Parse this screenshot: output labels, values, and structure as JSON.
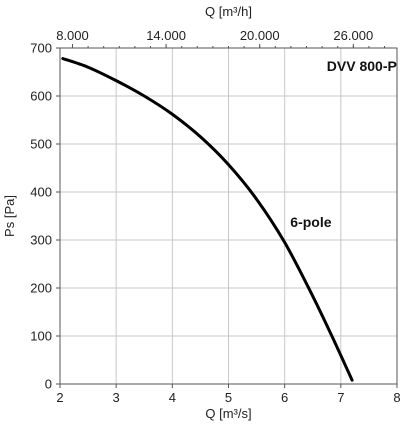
{
  "chart_data": {
    "type": "line",
    "title": "DVV 800-P",
    "xlabel": "Q [m³/s]",
    "ylabel": "Ps [Pa]",
    "x2label": "Q [m³/h]",
    "xlim": [
      2,
      8
    ],
    "ylim": [
      0,
      700
    ],
    "x_ticks": [
      "2",
      "3",
      "4",
      "5",
      "6",
      "7",
      "8"
    ],
    "y_ticks": [
      "0",
      "100",
      "200",
      "300",
      "400",
      "500",
      "600",
      "700"
    ],
    "x2_ticks": [
      "8.000",
      "14.000",
      "20.000",
      "26.000"
    ],
    "grid": true,
    "series": [
      {
        "name": "6-pole",
        "x": [
          2.05,
          2.5,
          3.0,
          3.5,
          4.0,
          4.5,
          5.0,
          5.5,
          6.0,
          6.5,
          6.9,
          7.2
        ],
        "y": [
          678,
          660,
          632,
          600,
          562,
          515,
          457,
          385,
          295,
          183,
          85,
          8
        ]
      }
    ],
    "colors": {
      "line": "#000000",
      "grid": "#c8c8c8",
      "axis": "#555555"
    }
  }
}
